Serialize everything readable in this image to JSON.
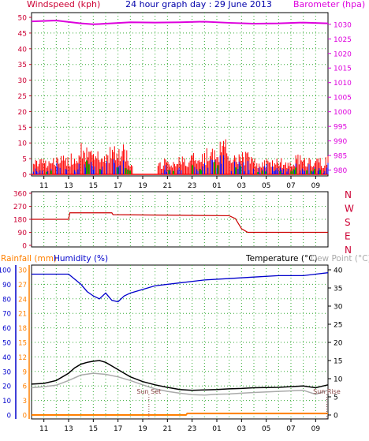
{
  "header": {
    "title": "24 hour graph day : 29 June 2013",
    "wind_label": "Windspeed (kph)",
    "baro_label": "Barometer (hpa)"
  },
  "colors": {
    "wind_axis": "#cc0033",
    "wind": "#ff0000",
    "gust_blue": "#0000ff",
    "gust_green": "#00aa00",
    "baro": "#dd00dd",
    "direction": "#cc0000",
    "rain": "#ff8000",
    "humidity": "#0000cc",
    "temperature": "#000000",
    "dewpoint": "#aaaaaa",
    "grid": "#33aa33"
  },
  "chart_data": [
    {
      "type": "line",
      "name": "wind-barometer",
      "x_ticks": [
        "11",
        "13",
        "15",
        "17",
        "19",
        "21",
        "23",
        "01",
        "03",
        "05",
        "07",
        "09"
      ],
      "y_left_label": "Windspeed (kph)",
      "y_left_ticks": [
        0,
        5,
        10,
        15,
        20,
        25,
        30,
        35,
        40,
        45,
        50
      ],
      "y_left_range": [
        0,
        50
      ],
      "y_right_label": "Barometer (hpa)",
      "y_right_ticks": [
        980,
        985,
        990,
        995,
        1000,
        1005,
        1010,
        1015,
        1020,
        1025,
        1030
      ],
      "y_right_range": [
        978,
        1034
      ],
      "barometer": {
        "hours": [
          0,
          2,
          4,
          5,
          6,
          8,
          10,
          12,
          14,
          16,
          18,
          20,
          22,
          24
        ],
        "values": [
          1031,
          1031.3,
          1030.3,
          1030,
          1030.2,
          1030.7,
          1030.6,
          1030.7,
          1030.9,
          1030.5,
          1030.2,
          1030.3,
          1030.6,
          1030.3
        ]
      },
      "wind_segments": [
        [
          0,
          8.2
        ],
        [
          10.2,
          24
        ]
      ],
      "wind_peaks": {
        "hours": [
          1,
          2,
          3,
          3.6,
          4,
          5,
          5.7,
          6,
          7,
          7.5,
          8,
          10.5,
          12,
          13,
          14.8,
          15.5,
          16,
          17,
          17.6,
          18,
          19,
          20,
          21,
          21.5,
          22,
          23,
          24
        ],
        "values": [
          5,
          6,
          6,
          10,
          11,
          7,
          8,
          10,
          9,
          11,
          4,
          5,
          6,
          7,
          9,
          13,
          9,
          7,
          8,
          6,
          5,
          6,
          5,
          7,
          6,
          5,
          6
        ]
      }
    },
    {
      "type": "line",
      "name": "wind-direction",
      "y_ticks": [
        0,
        90,
        180,
        270,
        360
      ],
      "y_range": [
        0,
        360
      ],
      "compass_labels": [
        "N",
        "W",
        "S",
        "E",
        "N"
      ],
      "hours": [
        0,
        3,
        3.1,
        6.5,
        6.6,
        16,
        16.5,
        17,
        17.5,
        24
      ],
      "values": [
        180,
        180,
        225,
        225,
        212,
        205,
        185,
        115,
        90,
        90
      ]
    },
    {
      "type": "line",
      "name": "temperature-humidity",
      "rain_label": "Rainfall (mm)",
      "humidity_label": "Humidity (%)",
      "temperature_label": "Temperature (°C)",
      "dewpoint_label": "Dew Point (°C)",
      "y_rain_ticks": [
        0,
        3,
        6,
        9,
        12,
        15,
        18,
        21,
        24,
        27,
        30
      ],
      "y_rain_range": [
        0,
        30
      ],
      "y_humidity_ticks": [
        0,
        10,
        20,
        30,
        40,
        50,
        60,
        70,
        80,
        90,
        100
      ],
      "y_humidity_range": [
        0,
        100
      ],
      "y_temp_ticks": [
        0,
        5,
        10,
        15,
        20,
        25,
        30,
        35,
        40
      ],
      "y_temp_range": [
        0,
        40
      ],
      "annotations": [
        {
          "text": "Sun Set",
          "hour": 9.5
        },
        {
          "text": "Sun Rise",
          "hour": 23.9
        }
      ],
      "humidity": {
        "hours": [
          0,
          1,
          2,
          3,
          4,
          4.5,
          5,
          5.5,
          6,
          6.5,
          7,
          7.5,
          8,
          10,
          12,
          14,
          16,
          18,
          20,
          22,
          23,
          24
        ],
        "values": [
          97,
          97,
          97,
          97,
          90,
          85,
          82,
          80,
          84,
          79,
          78,
          82,
          84,
          89,
          91,
          93,
          94,
          95,
          96,
          96,
          97,
          98
        ]
      },
      "temperature": {
        "hours": [
          0,
          1,
          2,
          3,
          3.5,
          4,
          4.5,
          5,
          5.5,
          6,
          6.5,
          7,
          7.5,
          8,
          9,
          10,
          11,
          12,
          13,
          14,
          15,
          16,
          17,
          18,
          20,
          22,
          23,
          24
        ],
        "values": [
          8.5,
          8.7,
          9.5,
          11.5,
          13,
          14,
          14.5,
          14.8,
          15,
          14.5,
          13.5,
          12.5,
          11.5,
          10.5,
          9.2,
          8.3,
          7.6,
          7,
          6.8,
          6.9,
          7,
          7.2,
          7.3,
          7.5,
          7.6,
          8,
          7.5,
          8.3
        ]
      },
      "dewpoint": {
        "hours": [
          0,
          1,
          2,
          3,
          4,
          5,
          6,
          7,
          8,
          9,
          10,
          11,
          12,
          13,
          14,
          15,
          16,
          17,
          18,
          20,
          22,
          23,
          24
        ],
        "values": [
          7.5,
          7.8,
          8.2,
          9.5,
          11,
          11.5,
          11.2,
          10.5,
          9.5,
          8.3,
          7.2,
          6.5,
          6,
          5.6,
          5.5,
          5.7,
          5.8,
          6,
          6.2,
          6.5,
          6.8,
          5.7,
          6.8
        ]
      },
      "rainfall": {
        "hours": [
          0,
          12.5,
          12.6,
          24
        ],
        "values": [
          0,
          0,
          0.3,
          0.3
        ]
      }
    }
  ]
}
